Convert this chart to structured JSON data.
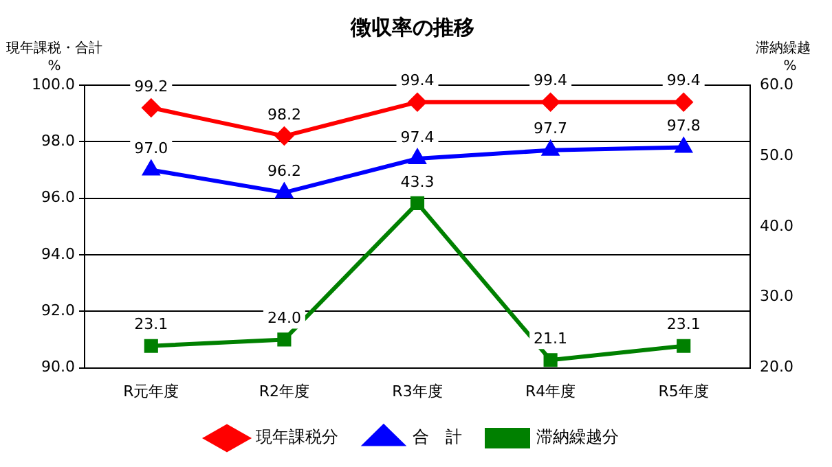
{
  "chart_data": {
    "type": "line",
    "title": "徴収率の推移",
    "ylabel": "現年課税・合計\n%",
    "y2label": "滞納繰越\n%",
    "categories": [
      "R元年度",
      "R2年度",
      "R3年度",
      "R4年度",
      "R5年度"
    ],
    "series": [
      {
        "name": "現年課税分",
        "color": "#ff0000",
        "marker": "diamond",
        "values": [
          99.2,
          98.2,
          99.4,
          99.4,
          99.4
        ],
        "value_labels": [
          "99.2",
          "98.2",
          "99.4",
          "99.4",
          "99.4"
        ]
      },
      {
        "name": "合　計",
        "color": "#0000ff",
        "marker": "triangle",
        "values": [
          97.0,
          96.2,
          97.4,
          97.7,
          97.8
        ],
        "value_labels": [
          "97.0",
          "96.2",
          "97.4",
          "97.7",
          "97.8"
        ]
      },
      {
        "name": "滞納繰越分",
        "color": "#008000",
        "marker": "square",
        "axis": "y2",
        "values": [
          23.1,
          24.0,
          43.3,
          21.1,
          23.1
        ],
        "value_labels": [
          "23.1",
          "24.0",
          "43.3",
          "21.1",
          "23.1"
        ]
      }
    ],
    "ylim": [
      90,
      100
    ],
    "yticks": [
      {
        "value": 90,
        "label": "90.0"
      },
      {
        "value": 92,
        "label": "92.0"
      },
      {
        "value": 94,
        "label": "94.0"
      },
      {
        "value": 96,
        "label": "96.0"
      },
      {
        "value": 98,
        "label": "98.0"
      },
      {
        "value": 100,
        "label": "100.0"
      }
    ],
    "y2lim": [
      20,
      60
    ],
    "y2ticks": [
      {
        "value": 20,
        "label": "20.0"
      },
      {
        "value": 30,
        "label": "30.0"
      },
      {
        "value": 40,
        "label": "40.0"
      },
      {
        "value": 50,
        "label": "50.0"
      },
      {
        "value": 60,
        "label": "60.0"
      }
    ],
    "grid": "y",
    "legend": "bottom",
    "line_style": "solid"
  }
}
